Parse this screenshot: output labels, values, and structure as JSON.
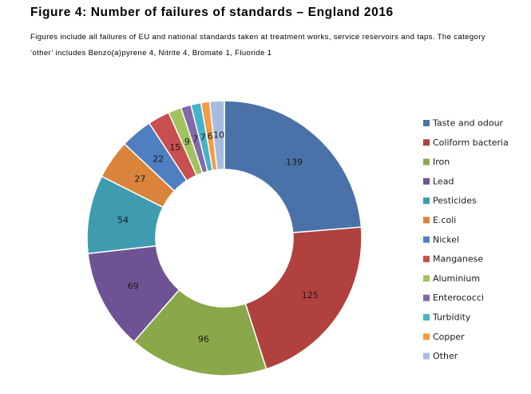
{
  "header": {
    "title": "Figure 4: Number of failures of standards – England 2016",
    "subtitle": "Figures include all failures of EU and national standards taken at treatment works, service reservoirs and taps. The category ‘other’ includes Benzo(a)pyrene 4, Nitrite 4, Bromate 1, Fluoride 1"
  },
  "chart_data": {
    "type": "pie",
    "donut": true,
    "legend_position": "right",
    "categories": [
      "Taste and odour",
      "Coliform bacteria",
      "Iron",
      "Lead",
      "Pesticides",
      "E.coli",
      "Nickel",
      "Manganese",
      "Aluminium",
      "Enterococci",
      "Turbidity",
      "Copper",
      "Other"
    ],
    "values": [
      139,
      125,
      96,
      69,
      54,
      27,
      22,
      15,
      9,
      7,
      7,
      6,
      10
    ],
    "colors": [
      "#4a72a8",
      "#b0413e",
      "#8aa84a",
      "#6e5394",
      "#3e9bb0",
      "#d9843a",
      "#4f7fc0",
      "#c84f4f",
      "#a2c25e",
      "#8468a8",
      "#47b3c8",
      "#f29c45",
      "#a8bce0"
    ]
  }
}
